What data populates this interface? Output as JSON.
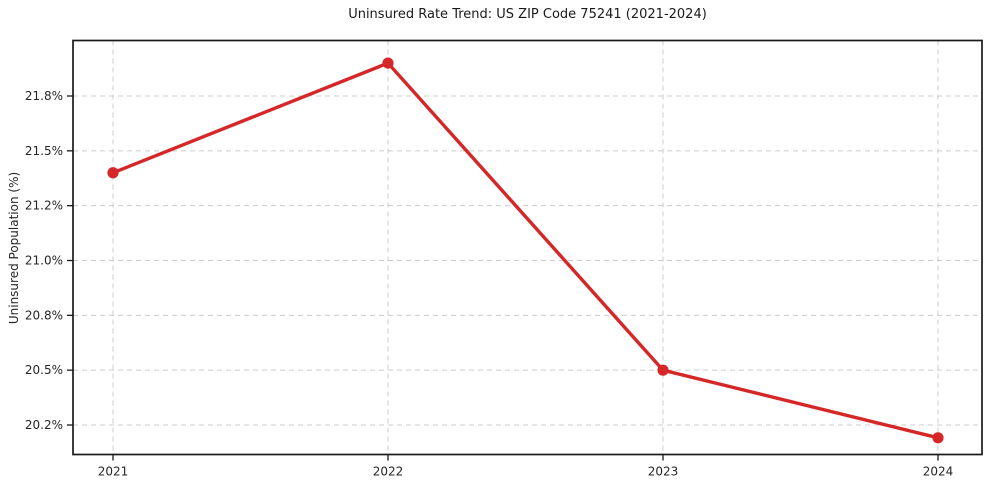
{
  "chart_data": {
    "type": "line",
    "title": "Uninsured Rate Trend: US ZIP Code 75241 (2021-2024)",
    "xlabel": "",
    "ylabel": "Uninsured Population (%)",
    "categories": [
      "2021",
      "2022",
      "2023",
      "2024"
    ],
    "series": [
      {
        "name": "Uninsured rate",
        "values": [
          21.38,
          21.98,
          20.5,
          20.13
        ]
      }
    ],
    "y_tick_values": [
      20.2,
      20.5,
      20.8,
      21.0,
      21.2,
      21.5,
      21.8
    ],
    "y_tick_labels": [
      "20.2%",
      "20.5%",
      "20.8%",
      "21.0%",
      "21.2%",
      "21.5%",
      "21.8%"
    ],
    "grid": true,
    "grid_style": "dashed",
    "legend": "none",
    "line_color": "#d62728",
    "marker_color": "#d62728",
    "marker": "circle",
    "grid_color": "#cccccc",
    "axis_color": "#1a1a1a",
    "text_color": "#262626",
    "background_color": "#ffffff"
  }
}
